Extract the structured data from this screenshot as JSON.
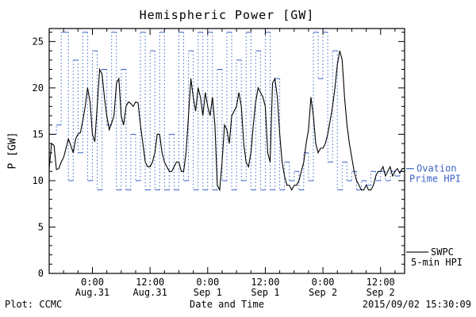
{
  "footer": {
    "left": "Plot: CCMC",
    "right": "2015/09/02 15:30:09"
  },
  "chart_data": {
    "type": "line",
    "title": "Hemispheric Power [GW]",
    "xlabel": "Date and Time",
    "ylabel": "P [GW]",
    "xlim": [
      -9,
      65
    ],
    "ylim": [
      0,
      26.4
    ],
    "grid": false,
    "legend_position": "right-outside",
    "x_ticks": [
      {
        "hour": 0,
        "time": "0:00",
        "date": "Aug.31"
      },
      {
        "hour": 12,
        "time": "12:00",
        "date": "Aug.31"
      },
      {
        "hour": 24,
        "time": "0:00",
        "date": "Sep 1"
      },
      {
        "hour": 36,
        "time": "12:00",
        "date": "Sep 1"
      },
      {
        "hour": 48,
        "time": "0:00",
        "date": "Sep 2"
      },
      {
        "hour": 60,
        "time": "12:00",
        "date": "Sep 2"
      }
    ],
    "y_ticks": [
      0,
      5,
      10,
      15,
      20,
      25
    ],
    "x_minor_step_hours": 3,
    "y_minor_step": 1,
    "series": [
      {
        "name": "Ovation Prime HPI",
        "color": "#3b64c8",
        "style": "step",
        "points": [
          [
            -9,
            15
          ],
          [
            -7.5,
            16
          ],
          [
            -6.5,
            26
          ],
          [
            -5,
            10
          ],
          [
            -4,
            23
          ],
          [
            -3,
            13
          ],
          [
            -2,
            26
          ],
          [
            -1,
            10
          ],
          [
            0,
            24
          ],
          [
            1,
            9
          ],
          [
            2,
            22
          ],
          [
            3,
            16
          ],
          [
            4,
            26
          ],
          [
            5,
            9
          ],
          [
            6,
            22
          ],
          [
            7,
            9
          ],
          [
            8,
            15
          ],
          [
            9,
            10
          ],
          [
            10,
            26
          ],
          [
            11,
            9
          ],
          [
            12,
            24
          ],
          [
            13,
            9
          ],
          [
            14,
            26
          ],
          [
            15,
            9
          ],
          [
            16,
            15
          ],
          [
            17,
            9
          ],
          [
            18,
            26
          ],
          [
            19,
            10
          ],
          [
            20,
            24
          ],
          [
            21,
            9
          ],
          [
            22,
            26
          ],
          [
            23,
            9
          ],
          [
            24,
            26
          ],
          [
            25,
            9
          ],
          [
            26,
            22
          ],
          [
            27,
            10
          ],
          [
            28,
            26
          ],
          [
            29,
            9
          ],
          [
            30,
            23
          ],
          [
            31,
            10
          ],
          [
            32,
            26
          ],
          [
            33,
            9
          ],
          [
            34,
            24
          ],
          [
            35,
            9
          ],
          [
            36,
            26
          ],
          [
            37,
            9
          ],
          [
            38,
            21
          ],
          [
            39,
            9
          ],
          [
            40,
            12
          ],
          [
            41,
            10
          ],
          [
            42,
            11
          ],
          [
            43,
            9
          ],
          [
            44,
            13
          ],
          [
            45,
            10
          ],
          [
            46,
            26
          ],
          [
            47,
            21
          ],
          [
            48,
            26
          ],
          [
            49,
            12
          ],
          [
            50,
            24
          ],
          [
            51,
            9
          ],
          [
            52,
            12
          ],
          [
            53,
            10
          ],
          [
            54,
            11
          ],
          [
            55,
            9
          ],
          [
            56,
            10
          ],
          [
            57,
            9.5
          ],
          [
            58,
            11
          ],
          [
            59,
            10
          ],
          [
            60,
            11
          ],
          [
            61,
            10
          ],
          [
            62,
            11
          ],
          [
            63,
            10.5
          ],
          [
            64,
            11
          ],
          [
            65,
            10.8
          ]
        ]
      },
      {
        "name": "SWPC 5-min HPI",
        "color": "#000000",
        "style": "solid",
        "points": [
          [
            -9,
            11.3
          ],
          [
            -8.5,
            14
          ],
          [
            -8,
            13.8
          ],
          [
            -7.5,
            11.2
          ],
          [
            -7,
            11.3
          ],
          [
            -6.5,
            12
          ],
          [
            -6,
            12.5
          ],
          [
            -5.5,
            13.5
          ],
          [
            -5,
            14.5
          ],
          [
            -4.5,
            13.8
          ],
          [
            -4,
            13
          ],
          [
            -3.5,
            14.5
          ],
          [
            -3,
            15
          ],
          [
            -2.5,
            15.2
          ],
          [
            -2,
            16.5
          ],
          [
            -1.5,
            18
          ],
          [
            -1,
            20
          ],
          [
            -0.5,
            18.5
          ],
          [
            0,
            15
          ],
          [
            0.5,
            14.2
          ],
          [
            1,
            18
          ],
          [
            1.5,
            22
          ],
          [
            2,
            21.5
          ],
          [
            2.5,
            19
          ],
          [
            3,
            17
          ],
          [
            3.5,
            15.5
          ],
          [
            4,
            16.2
          ],
          [
            4.5,
            17
          ],
          [
            5,
            20.5
          ],
          [
            5.5,
            21
          ],
          [
            6,
            17
          ],
          [
            6.5,
            16
          ],
          [
            7,
            18
          ],
          [
            7.5,
            18.5
          ],
          [
            8,
            18.3
          ],
          [
            8.5,
            18
          ],
          [
            9,
            18.5
          ],
          [
            9.5,
            18.4
          ],
          [
            10,
            16
          ],
          [
            10.5,
            14
          ],
          [
            11,
            12
          ],
          [
            11.5,
            11.5
          ],
          [
            12,
            11.5
          ],
          [
            12.5,
            12
          ],
          [
            13,
            13
          ],
          [
            13.5,
            15
          ],
          [
            14,
            15
          ],
          [
            14.5,
            13
          ],
          [
            15,
            12
          ],
          [
            15.5,
            11.5
          ],
          [
            16,
            11
          ],
          [
            16.5,
            11
          ],
          [
            17,
            11.5
          ],
          [
            17.5,
            12
          ],
          [
            18,
            12
          ],
          [
            18.5,
            11
          ],
          [
            19,
            11
          ],
          [
            19.5,
            13
          ],
          [
            20,
            17
          ],
          [
            20.5,
            21
          ],
          [
            21,
            19
          ],
          [
            21.5,
            17.5
          ],
          [
            22,
            20
          ],
          [
            22.5,
            19
          ],
          [
            23,
            17
          ],
          [
            23.5,
            19.5
          ],
          [
            24,
            18
          ],
          [
            24.5,
            17
          ],
          [
            25,
            19
          ],
          [
            25.5,
            16
          ],
          [
            26,
            9.5
          ],
          [
            26.5,
            9
          ],
          [
            27,
            12
          ],
          [
            27.5,
            16
          ],
          [
            28,
            15.5
          ],
          [
            28.5,
            14
          ],
          [
            29,
            17
          ],
          [
            29.5,
            17.5
          ],
          [
            30,
            18
          ],
          [
            30.5,
            19.5
          ],
          [
            31,
            18
          ],
          [
            31.5,
            14
          ],
          [
            32,
            12
          ],
          [
            32.5,
            11.5
          ],
          [
            33,
            13
          ],
          [
            33.5,
            16
          ],
          [
            34,
            18.5
          ],
          [
            34.5,
            20
          ],
          [
            35,
            19.5
          ],
          [
            35.5,
            19
          ],
          [
            36,
            18
          ],
          [
            36.5,
            13
          ],
          [
            37,
            12
          ],
          [
            37.5,
            20.5
          ],
          [
            38,
            21
          ],
          [
            38.5,
            19
          ],
          [
            39,
            15
          ],
          [
            39.5,
            12
          ],
          [
            40,
            10.5
          ],
          [
            40.5,
            9.5
          ],
          [
            41,
            9.5
          ],
          [
            41.5,
            9
          ],
          [
            42,
            9.5
          ],
          [
            42.5,
            9.5
          ],
          [
            43,
            10
          ],
          [
            43.5,
            11
          ],
          [
            44,
            12
          ],
          [
            44.5,
            14
          ],
          [
            45,
            15.5
          ],
          [
            45.5,
            19
          ],
          [
            46,
            17
          ],
          [
            46.5,
            14
          ],
          [
            47,
            13
          ],
          [
            47.5,
            13.5
          ],
          [
            48,
            13.5
          ],
          [
            48.5,
            14
          ],
          [
            49,
            15
          ],
          [
            49.5,
            16.5
          ],
          [
            50,
            18
          ],
          [
            50.5,
            20
          ],
          [
            51,
            22.5
          ],
          [
            51.5,
            24
          ],
          [
            52,
            23
          ],
          [
            52.5,
            19
          ],
          [
            53,
            16
          ],
          [
            53.5,
            14
          ],
          [
            54,
            12.5
          ],
          [
            54.5,
            11
          ],
          [
            55,
            10
          ],
          [
            55.5,
            9.5
          ],
          [
            56,
            9
          ],
          [
            56.5,
            9
          ],
          [
            57,
            9.5
          ],
          [
            57.5,
            9
          ],
          [
            58,
            9
          ],
          [
            58.5,
            9.5
          ],
          [
            59,
            10.5
          ],
          [
            59.5,
            11
          ],
          [
            60,
            11
          ],
          [
            60.5,
            11.5
          ],
          [
            61,
            10.5
          ],
          [
            61.5,
            11
          ],
          [
            62,
            11.5
          ],
          [
            62.5,
            10.5
          ],
          [
            63,
            11
          ],
          [
            63.5,
            11.3
          ],
          [
            64,
            10.8
          ],
          [
            64.5,
            11.3
          ],
          [
            65,
            11.3
          ]
        ]
      }
    ],
    "legend": [
      {
        "label_line1": "Ovation",
        "label_line2": "Prime HPI",
        "color": "#3b64c8",
        "sample_y_value": 11.3
      },
      {
        "label_line1": "SWPC",
        "label_line2": "5-min HPI",
        "color": "#000000",
        "sample_y_value": 2.3
      }
    ]
  }
}
